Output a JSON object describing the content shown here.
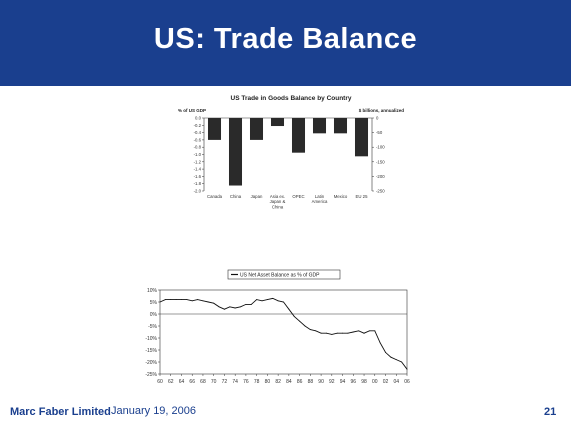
{
  "slide": {
    "title": "US: Trade Balance",
    "footer_brand": "Marc Faber Limited",
    "footer_date": "January 19, 2006",
    "page_number": "21",
    "header_color": "#1a3f8e"
  },
  "chart_data": [
    {
      "type": "bar",
      "title": "US Trade in Goods Balance by Country",
      "ylabel_left": "% of US GDP",
      "ylabel_right": "$ billions, annualized",
      "categories": [
        "Canada",
        "China",
        "Japan",
        "Asia ex. Japan & China",
        "OPEC",
        "Latin America",
        "Mexico",
        "EU 25"
      ],
      "category_lines": [
        [
          "Canada"
        ],
        [
          "China"
        ],
        [
          "Japan"
        ],
        [
          "Asia ex.",
          "Japan &",
          "China"
        ],
        [
          "OPEC"
        ],
        [
          "Latin",
          "America"
        ],
        [
          "Mexico"
        ],
        [
          "EU 25"
        ]
      ],
      "values": [
        -0.6,
        -1.85,
        -0.6,
        -0.22,
        -0.95,
        -0.42,
        -0.42,
        -1.05
      ],
      "ylim_left": [
        -2.0,
        0.0
      ],
      "yticks_left": [
        "0.0",
        "-0.2",
        "-0.4",
        "-0.6",
        "-0.8",
        "-1.0",
        "-1.2",
        "-1.4",
        "-1.6",
        "-1.8",
        "-2.0"
      ],
      "ylim_right": [
        -250,
        0
      ],
      "yticks_right": [
        "0",
        "-50",
        "-100",
        "-150",
        "-200",
        "-250"
      ],
      "bar_color": "#2a2a2a"
    },
    {
      "type": "line",
      "series": [
        {
          "name": "US Net Asset Balance as % of GDP",
          "x": [
            1960,
            1961,
            1962,
            1963,
            1964,
            1965,
            1966,
            1967,
            1968,
            1969,
            1970,
            1971,
            1972,
            1973,
            1974,
            1975,
            1976,
            1977,
            1978,
            1979,
            1980,
            1981,
            1982,
            1983,
            1984,
            1985,
            1986,
            1987,
            1988,
            1989,
            1990,
            1991,
            1992,
            1993,
            1994,
            1995,
            1996,
            1997,
            1998,
            1999,
            2000,
            2001,
            2002,
            2003,
            2004,
            2005,
            2006
          ],
          "y": [
            5,
            6,
            6,
            6,
            6,
            6,
            5.5,
            6,
            5.5,
            5,
            4.5,
            3,
            2,
            3,
            2.5,
            3,
            4,
            4,
            6,
            5.5,
            6,
            6.5,
            5.5,
            5,
            2,
            -1,
            -3,
            -5,
            -6.5,
            -7,
            -8,
            -8,
            -8.5,
            -8,
            -8,
            -8,
            -7.5,
            -7,
            -8,
            -7,
            -7,
            -12,
            -16,
            -18,
            -19,
            -20,
            -23
          ]
        }
      ],
      "ylim": [
        -25,
        10
      ],
      "yticks": [
        "10%",
        "5%",
        "0%",
        "-5%",
        "-10%",
        "-15%",
        "-20%",
        "-25%"
      ],
      "xticks": [
        "60",
        "62",
        "64",
        "66",
        "68",
        "70",
        "72",
        "74",
        "76",
        "78",
        "80",
        "82",
        "84",
        "86",
        "88",
        "90",
        "92",
        "94",
        "96",
        "98",
        "00",
        "02",
        "04",
        "06"
      ],
      "line_color": "#111111",
      "grid": false
    }
  ]
}
